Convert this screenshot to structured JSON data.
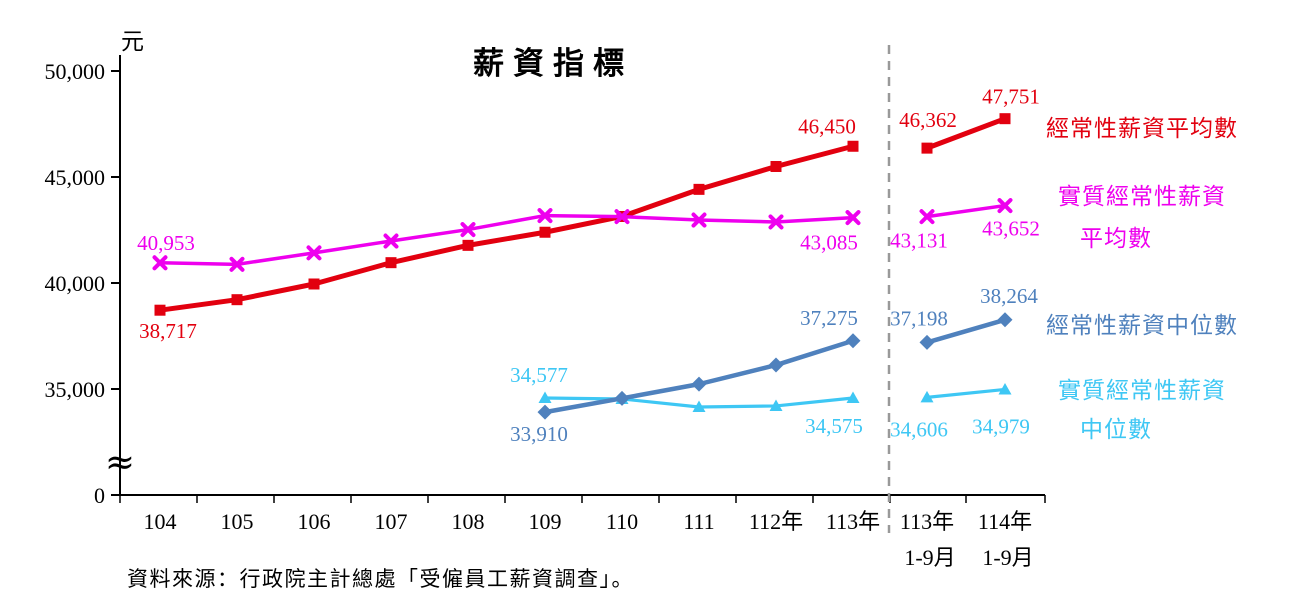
{
  "chart_data": {
    "type": "line",
    "title": "薪資指標",
    "unit_label": "元",
    "source_note": "資料來源：行政院主計總處「受僱員工薪資調查」。",
    "ylim": [
      0,
      50000
    ],
    "y_axis": {
      "has_axis_break": true,
      "break_symbol": "≈",
      "ticks": [
        {
          "value": 50000,
          "label": "50,000"
        },
        {
          "value": 45000,
          "label": "45,000"
        },
        {
          "value": 40000,
          "label": "40,000"
        },
        {
          "value": 35000,
          "label": "35,000"
        },
        {
          "value": 0,
          "label": "0"
        }
      ]
    },
    "x_axis": {
      "separator_after_index": 9,
      "categories": [
        {
          "label": "104"
        },
        {
          "label": "105"
        },
        {
          "label": "106"
        },
        {
          "label": "107"
        },
        {
          "label": "108"
        },
        {
          "label": "109"
        },
        {
          "label": "110"
        },
        {
          "label": "111"
        },
        {
          "label": "112年"
        },
        {
          "label": "113年"
        },
        {
          "label": "113年",
          "sublabel": "1-9月"
        },
        {
          "label": "114年",
          "sublabel": "1-9月"
        }
      ]
    },
    "separator_color": "#999999",
    "series": [
      {
        "name": "經常性薪資平均數",
        "legend_lines": [
          "經常性薪資平均數"
        ],
        "color": "#E2000F",
        "marker": "square",
        "values": [
          38717,
          39213,
          39953,
          40959,
          41776,
          42394,
          43138,
          44417,
          45496,
          46450,
          46362,
          47751
        ],
        "point_labels": {
          "0": "38,717",
          "9": "46,450",
          "10": "46,362",
          "11": "47,751"
        }
      },
      {
        "name": "實質經常性薪資平均數",
        "legend_lines": [
          "實質經常性薪資",
          "平均數"
        ],
        "color": "#EE00EE",
        "marker": "x",
        "values": [
          40953,
          40880,
          41420,
          41980,
          42520,
          43180,
          43130,
          42970,
          42880,
          43085,
          43131,
          43652
        ],
        "point_labels": {
          "0": "40,953",
          "9": "43,085",
          "10": "43,131",
          "11": "43,652"
        }
      },
      {
        "name": "經常性薪資中位數",
        "legend_lines": [
          "經常性薪資中位數"
        ],
        "color": "#4F81BD",
        "marker": "diamond",
        "values": [
          null,
          null,
          null,
          null,
          null,
          33910,
          34560,
          35230,
          36130,
          37275,
          37198,
          38264
        ],
        "point_labels": {
          "5": "33,910",
          "9": "37,275",
          "10": "37,198",
          "11": "38,264"
        }
      },
      {
        "name": "實質經常性薪資中位數",
        "legend_lines": [
          "實質經常性薪資",
          "中位數"
        ],
        "color": "#3EC7F4",
        "marker": "triangle",
        "values": [
          null,
          null,
          null,
          null,
          null,
          34577,
          34530,
          34150,
          34200,
          34575,
          34606,
          34979
        ],
        "point_labels": {
          "5": "34,577",
          "9": "34,575",
          "10": "34,606",
          "11": "34,979"
        }
      }
    ]
  }
}
